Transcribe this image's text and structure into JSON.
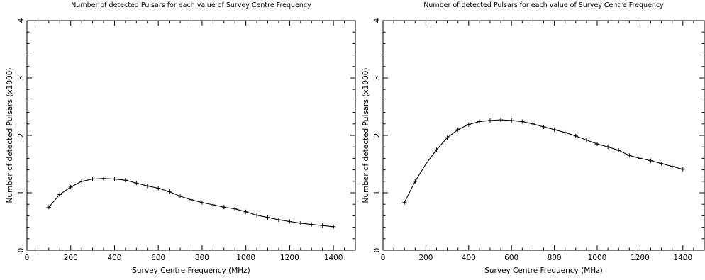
{
  "chart_data": [
    {
      "type": "line",
      "title": "Number of detected Pulsars for each value of Survey Centre Frequency",
      "xlabel": "Survey Centre Frequency (MHz)",
      "ylabel": "Number of detected Pulsars (x1000)",
      "xlim": [
        0,
        1500
      ],
      "ylim": [
        0,
        4
      ],
      "xticks": [
        0,
        200,
        400,
        600,
        800,
        1000,
        1200,
        1400
      ],
      "yticks": [
        0,
        1,
        2,
        3,
        4
      ],
      "grid": false,
      "marker": "+",
      "x": [
        100,
        150,
        200,
        250,
        300,
        350,
        400,
        450,
        500,
        550,
        600,
        650,
        700,
        750,
        800,
        850,
        900,
        950,
        1000,
        1050,
        1100,
        1150,
        1200,
        1250,
        1300,
        1350,
        1400
      ],
      "series": [
        {
          "values": [
            0.75,
            0.97,
            1.1,
            1.2,
            1.24,
            1.25,
            1.24,
            1.22,
            1.17,
            1.12,
            1.08,
            1.02,
            0.94,
            0.88,
            0.83,
            0.79,
            0.75,
            0.72,
            0.67,
            0.61,
            0.57,
            0.53,
            0.5,
            0.47,
            0.45,
            0.43,
            0.41
          ]
        }
      ]
    },
    {
      "type": "line",
      "title": "Number of detected Pulsars for each value of Survey Centre Frequency",
      "xlabel": "Survey Centre Frequency (MHz)",
      "ylabel": "Number of detected Pulsars (x1000)",
      "xlim": [
        0,
        1500
      ],
      "ylim": [
        0,
        4
      ],
      "xticks": [
        0,
        200,
        400,
        600,
        800,
        1000,
        1200,
        1400
      ],
      "yticks": [
        0,
        1,
        2,
        3,
        4
      ],
      "grid": false,
      "marker": "+",
      "x": [
        100,
        150,
        200,
        250,
        300,
        350,
        400,
        450,
        500,
        550,
        600,
        650,
        700,
        750,
        800,
        850,
        900,
        950,
        1000,
        1050,
        1100,
        1150,
        1200,
        1250,
        1300,
        1350,
        1400
      ],
      "series": [
        {
          "values": [
            0.83,
            1.2,
            1.5,
            1.75,
            1.96,
            2.1,
            2.19,
            2.24,
            2.26,
            2.27,
            2.26,
            2.24,
            2.2,
            2.15,
            2.1,
            2.05,
            1.99,
            1.92,
            1.85,
            1.8,
            1.74,
            1.65,
            1.6,
            1.56,
            1.51,
            1.46,
            1.41
          ]
        }
      ]
    }
  ]
}
